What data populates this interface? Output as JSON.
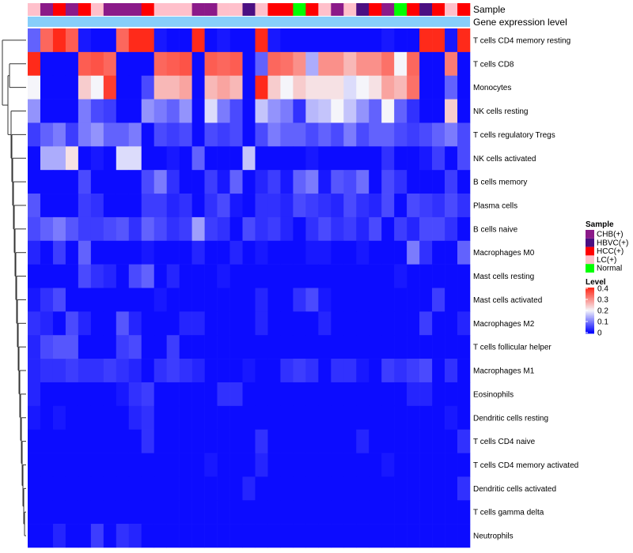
{
  "chart_data": {
    "type": "heatmap",
    "annotation_labels": [
      "Sample",
      "Gene expression level"
    ],
    "rows": [
      "T cells CD4 memory resting",
      "T cells CD8",
      "Monocytes",
      "NK cells resting",
      "T cells regulatory  Tregs",
      "NK cells activated",
      "B cells memory",
      "Plasma cells",
      "B cells naive",
      "Macrophages M0",
      "Mast cells resting",
      "Mast cells activated",
      "Macrophages M2",
      "T cells follicular helper",
      "Macrophages M1",
      "Eosinophils",
      "Dendritic cells resting",
      "T cells CD4 naive",
      "T cells CD4 memory activated",
      "Dendritic cells activated",
      "T cells gamma delta",
      "Neutrophils"
    ],
    "sample_groups": [
      "LC(+)",
      "CHB(+)",
      "HCC(+)",
      "CHB(+)",
      "HCC(+)",
      "LC(+)",
      "CHB(+)",
      "CHB(+)",
      "CHB(+)",
      "HCC(+)",
      "LC(+)",
      "LC(+)",
      "LC(+)",
      "CHB(+)",
      "CHB(+)",
      "LC(+)",
      "LC(+)",
      "HBVC(+)",
      "LC(+)",
      "HCC(+)",
      "HCC(+)",
      "Normal",
      "HCC(+)",
      "LC(+)",
      "CHB(+)",
      "LC(+)",
      "HBVC(+)",
      "HCC(+)",
      "CHB(+)",
      "Normal",
      "HCC(+)",
      "HBVC(+)",
      "HCC(+)",
      "LC(+)",
      "HCC(+)"
    ],
    "values": [
      [
        0.08,
        0.34,
        0.4,
        0.35,
        0.02,
        0.01,
        0.01,
        0.34,
        0.4,
        0.4,
        0.02,
        0.01,
        0.01,
        0.4,
        0.01,
        0.02,
        0.01,
        0.01,
        0.4,
        0.02,
        0.01,
        0.01,
        0.01,
        0.01,
        0.01,
        0.01,
        0.01,
        0.01,
        0.02,
        0.01,
        0.01,
        0.4,
        0.4,
        0.02,
        0.4
      ],
      [
        0.4,
        0.01,
        0.01,
        0.01,
        0.35,
        0.36,
        0.34,
        0.01,
        0.01,
        0.01,
        0.34,
        0.35,
        0.36,
        0.01,
        0.35,
        0.34,
        0.35,
        0.01,
        0.08,
        0.34,
        0.33,
        0.3,
        0.14,
        0.3,
        0.3,
        0.26,
        0.3,
        0.3,
        0.33,
        0.2,
        0.34,
        0.01,
        0.01,
        0.32,
        0.01
      ],
      [
        0.2,
        0.01,
        0.01,
        0.01,
        0.24,
        0.2,
        0.38,
        0.01,
        0.01,
        0.06,
        0.26,
        0.26,
        0.28,
        0.01,
        0.26,
        0.28,
        0.26,
        0.01,
        0.4,
        0.24,
        0.2,
        0.24,
        0.22,
        0.22,
        0.22,
        0.18,
        0.2,
        0.22,
        0.28,
        0.26,
        0.33,
        0.01,
        0.01,
        0.08,
        0.01
      ],
      [
        0.12,
        0.01,
        0.01,
        0.01,
        0.1,
        0.06,
        0.05,
        0.01,
        0.01,
        0.12,
        0.1,
        0.08,
        0.12,
        0.01,
        0.18,
        0.1,
        0.06,
        0.01,
        0.16,
        0.12,
        0.1,
        0.04,
        0.15,
        0.16,
        0.2,
        0.16,
        0.12,
        0.08,
        0.2,
        0.08,
        0.04,
        0.01,
        0.01,
        0.24,
        0.01
      ],
      [
        0.05,
        0.08,
        0.1,
        0.05,
        0.1,
        0.12,
        0.08,
        0.08,
        0.1,
        0.01,
        0.06,
        0.05,
        0.06,
        0.01,
        0.06,
        0.05,
        0.06,
        0.01,
        0.06,
        0.1,
        0.08,
        0.08,
        0.06,
        0.08,
        0.06,
        0.1,
        0.06,
        0.08,
        0.08,
        0.06,
        0.05,
        0.06,
        0.08,
        0.1,
        0.06
      ],
      [
        0.01,
        0.14,
        0.14,
        0.22,
        0.01,
        0.02,
        0.01,
        0.18,
        0.18,
        0.01,
        0.01,
        0.02,
        0.01,
        0.08,
        0.01,
        0.01,
        0.01,
        0.16,
        0.01,
        0.01,
        0.01,
        0.01,
        0.02,
        0.01,
        0.01,
        0.01,
        0.01,
        0.01,
        0.04,
        0.01,
        0.01,
        0.02,
        0.05,
        0.01,
        0.06
      ],
      [
        0.01,
        0.01,
        0.01,
        0.01,
        0.06,
        0.01,
        0.01,
        0.01,
        0.01,
        0.06,
        0.1,
        0.04,
        0.01,
        0.01,
        0.05,
        0.02,
        0.08,
        0.01,
        0.03,
        0.05,
        0.02,
        0.08,
        0.1,
        0.02,
        0.07,
        0.06,
        0.09,
        0.01,
        0.06,
        0.04,
        0.01,
        0.01,
        0.01,
        0.05,
        0.01
      ],
      [
        0.07,
        0.01,
        0.01,
        0.01,
        0.05,
        0.04,
        0.01,
        0.01,
        0.01,
        0.05,
        0.05,
        0.03,
        0.04,
        0.01,
        0.04,
        0.06,
        0.02,
        0.01,
        0.04,
        0.04,
        0.03,
        0.06,
        0.05,
        0.04,
        0.03,
        0.06,
        0.04,
        0.03,
        0.06,
        0.01,
        0.06,
        0.05,
        0.04,
        0.06,
        0.04
      ],
      [
        0.06,
        0.08,
        0.1,
        0.07,
        0.05,
        0.05,
        0.06,
        0.07,
        0.04,
        0.08,
        0.06,
        0.04,
        0.05,
        0.13,
        0.05,
        0.04,
        0.01,
        0.06,
        0.04,
        0.05,
        0.03,
        0.01,
        0.04,
        0.06,
        0.04,
        0.05,
        0.03,
        0.06,
        0.01,
        0.05,
        0.03,
        0.06,
        0.06,
        0.04,
        0.01
      ],
      [
        0.03,
        0.01,
        0.05,
        0.01,
        0.08,
        0.01,
        0.01,
        0.01,
        0.01,
        0.02,
        0.01,
        0.01,
        0.01,
        0.03,
        0.01,
        0.01,
        0.03,
        0.01,
        0.02,
        0.01,
        0.01,
        0.01,
        0.02,
        0.02,
        0.01,
        0.01,
        0.02,
        0.01,
        0.01,
        0.01,
        0.1,
        0.04,
        0.01,
        0.01,
        0.08
      ],
      [
        0.01,
        0.01,
        0.01,
        0.01,
        0.06,
        0.04,
        0.03,
        0.01,
        0.06,
        0.08,
        0.01,
        0.03,
        0.01,
        0.01,
        0.01,
        0.02,
        0.01,
        0.01,
        0.01,
        0.01,
        0.01,
        0.01,
        0.01,
        0.01,
        0.01,
        0.01,
        0.01,
        0.01,
        0.01,
        0.02,
        0.01,
        0.01,
        0.01,
        0.01,
        0.01
      ],
      [
        0.02,
        0.04,
        0.06,
        0.01,
        0.01,
        0.01,
        0.01,
        0.01,
        0.01,
        0.01,
        0.02,
        0.01,
        0.01,
        0.01,
        0.01,
        0.01,
        0.01,
        0.01,
        0.03,
        0.01,
        0.01,
        0.04,
        0.06,
        0.02,
        0.01,
        0.01,
        0.01,
        0.01,
        0.01,
        0.01,
        0.01,
        0.01,
        0.05,
        0.01,
        0.01
      ],
      [
        0.04,
        0.03,
        0.01,
        0.06,
        0.03,
        0.01,
        0.01,
        0.07,
        0.03,
        0.01,
        0.01,
        0.01,
        0.03,
        0.03,
        0.01,
        0.01,
        0.01,
        0.01,
        0.03,
        0.01,
        0.01,
        0.01,
        0.01,
        0.03,
        0.01,
        0.01,
        0.01,
        0.01,
        0.01,
        0.01,
        0.01,
        0.05,
        0.01,
        0.01,
        0.03
      ],
      [
        0.03,
        0.06,
        0.07,
        0.07,
        0.01,
        0.01,
        0.01,
        0.05,
        0.06,
        0.01,
        0.01,
        0.05,
        0.01,
        0.01,
        0.01,
        0.01,
        0.01,
        0.01,
        0.01,
        0.01,
        0.01,
        0.01,
        0.01,
        0.01,
        0.01,
        0.01,
        0.01,
        0.01,
        0.01,
        0.01,
        0.01,
        0.01,
        0.01,
        0.01,
        0.01
      ],
      [
        0.03,
        0.04,
        0.04,
        0.05,
        0.04,
        0.04,
        0.05,
        0.04,
        0.03,
        0.01,
        0.04,
        0.05,
        0.04,
        0.03,
        0.01,
        0.01,
        0.01,
        0.02,
        0.01,
        0.01,
        0.04,
        0.05,
        0.04,
        0.01,
        0.04,
        0.04,
        0.02,
        0.01,
        0.05,
        0.04,
        0.05,
        0.06,
        0.01,
        0.04,
        0.01
      ],
      [
        0.03,
        0.01,
        0.01,
        0.01,
        0.01,
        0.01,
        0.01,
        0.02,
        0.04,
        0.05,
        0.01,
        0.01,
        0.01,
        0.01,
        0.01,
        0.04,
        0.04,
        0.01,
        0.01,
        0.01,
        0.01,
        0.01,
        0.01,
        0.01,
        0.01,
        0.01,
        0.01,
        0.01,
        0.01,
        0.01,
        0.03,
        0.03,
        0.01,
        0.01,
        0.01
      ],
      [
        0.02,
        0.01,
        0.02,
        0.01,
        0.01,
        0.01,
        0.01,
        0.01,
        0.03,
        0.04,
        0.01,
        0.01,
        0.01,
        0.01,
        0.01,
        0.01,
        0.01,
        0.01,
        0.01,
        0.01,
        0.01,
        0.01,
        0.01,
        0.01,
        0.01,
        0.01,
        0.01,
        0.01,
        0.01,
        0.01,
        0.01,
        0.01,
        0.01,
        0.02,
        0.01
      ],
      [
        0.01,
        0.01,
        0.01,
        0.01,
        0.01,
        0.01,
        0.01,
        0.01,
        0.01,
        0.04,
        0.01,
        0.01,
        0.01,
        0.01,
        0.01,
        0.01,
        0.01,
        0.01,
        0.04,
        0.01,
        0.01,
        0.01,
        0.01,
        0.01,
        0.01,
        0.01,
        0.03,
        0.01,
        0.01,
        0.01,
        0.01,
        0.01,
        0.01,
        0.01,
        0.04
      ],
      [
        0.01,
        0.01,
        0.01,
        0.01,
        0.01,
        0.01,
        0.01,
        0.01,
        0.01,
        0.01,
        0.01,
        0.01,
        0.01,
        0.01,
        0.02,
        0.01,
        0.01,
        0.01,
        0.03,
        0.01,
        0.01,
        0.01,
        0.01,
        0.01,
        0.01,
        0.01,
        0.01,
        0.01,
        0.02,
        0.01,
        0.01,
        0.01,
        0.01,
        0.01,
        0.01
      ],
      [
        0.01,
        0.01,
        0.01,
        0.01,
        0.01,
        0.01,
        0.01,
        0.01,
        0.01,
        0.01,
        0.01,
        0.01,
        0.01,
        0.01,
        0.01,
        0.01,
        0.01,
        0.03,
        0.01,
        0.01,
        0.01,
        0.01,
        0.01,
        0.01,
        0.01,
        0.01,
        0.01,
        0.01,
        0.01,
        0.01,
        0.01,
        0.01,
        0.01,
        0.01,
        0.04
      ],
      [
        0.01,
        0.01,
        0.01,
        0.01,
        0.01,
        0.01,
        0.01,
        0.01,
        0.01,
        0.01,
        0.01,
        0.01,
        0.01,
        0.01,
        0.01,
        0.01,
        0.01,
        0.01,
        0.01,
        0.01,
        0.01,
        0.01,
        0.01,
        0.01,
        0.01,
        0.01,
        0.01,
        0.01,
        0.01,
        0.01,
        0.01,
        0.01,
        0.01,
        0.01,
        0.01
      ],
      [
        0.01,
        0.01,
        0.03,
        0.01,
        0.01,
        0.05,
        0.01,
        0.04,
        0.03,
        0.01,
        0.01,
        0.01,
        0.01,
        0.01,
        0.01,
        0.01,
        0.01,
        0.01,
        0.01,
        0.01,
        0.01,
        0.01,
        0.01,
        0.01,
        0.01,
        0.01,
        0.01,
        0.01,
        0.01,
        0.01,
        0.01,
        0.01,
        0.01,
        0.01,
        0.01
      ]
    ],
    "color_scale": {
      "low": "#0000ff",
      "mid": "#f5f5fa",
      "high": "#ff2a1a",
      "vmin": 0,
      "vmid": 0.2,
      "vmax": 0.4
    },
    "annotation_bar_color": "#87cefa",
    "legend_sample": {
      "title": "Sample",
      "items": [
        {
          "label": "CHB(+)",
          "color": "#8b1a89"
        },
        {
          "label": "HBVC(+)",
          "color": "#4b0f82"
        },
        {
          "label": "HCC(+)",
          "color": "#ff0000"
        },
        {
          "label": "LC(+)",
          "color": "#ffc0cb"
        },
        {
          "label": "Normal",
          "color": "#00ff00"
        }
      ]
    },
    "legend_level": {
      "title": "Level",
      "ticks": [
        0.4,
        0.3,
        0.2,
        0.1,
        0
      ],
      "tick_labels": [
        "0.4",
        "0.3",
        "0.2",
        "0.1",
        "0"
      ]
    }
  }
}
